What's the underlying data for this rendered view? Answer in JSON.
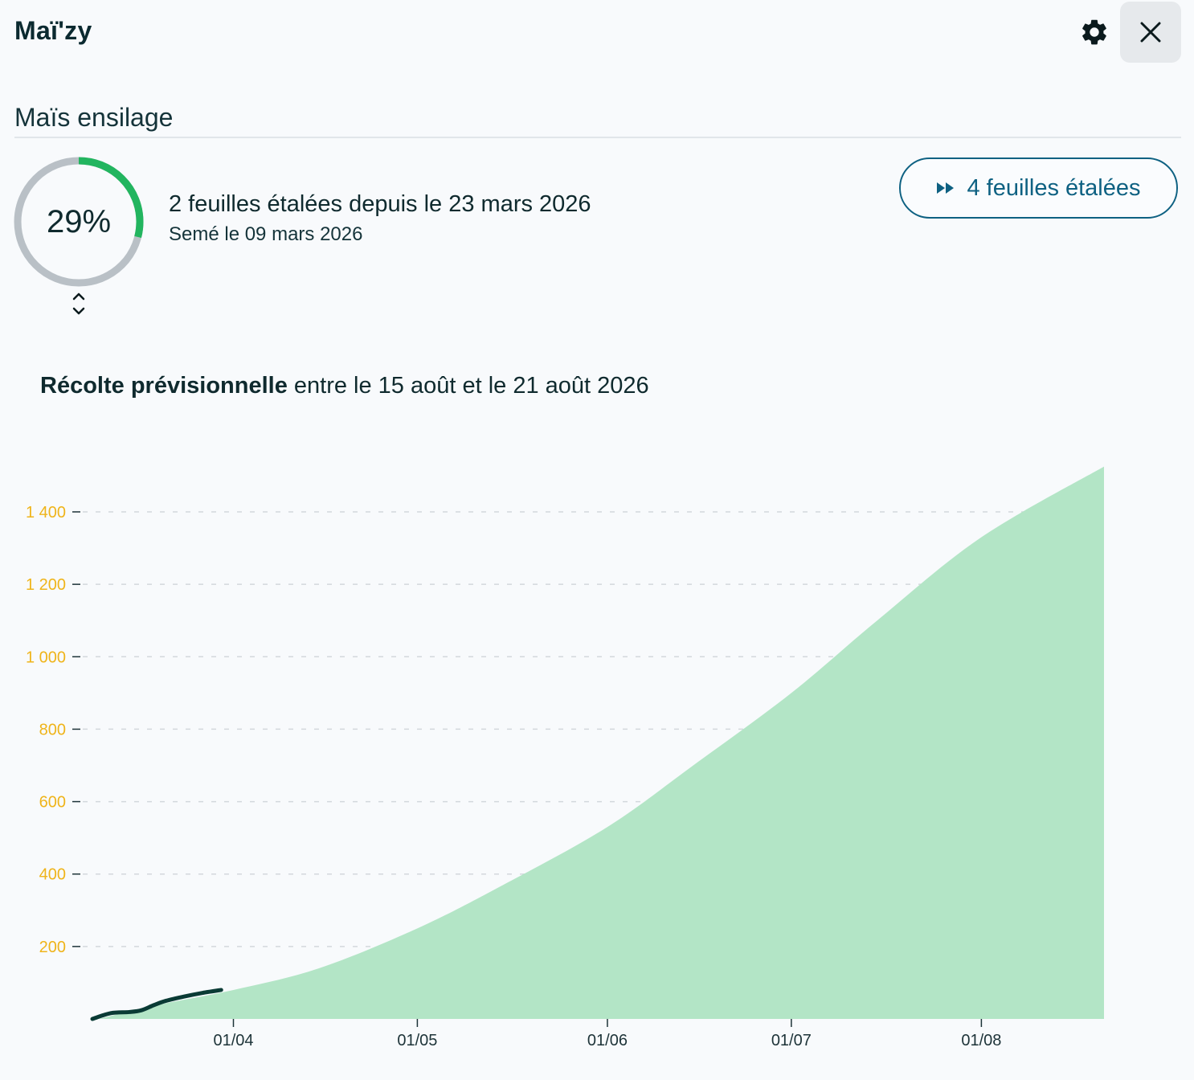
{
  "header": {
    "app_title": "Maï'zy",
    "settings_icon": "gear-icon",
    "close_icon": "close-icon"
  },
  "crop": {
    "name": "Maïs ensilage",
    "progress_label": "29%",
    "progress_value": 0.29,
    "leaves_text": "2 feuilles étalées depuis le 23 mars 2026",
    "sown_text": "Semé le 09 mars 2026"
  },
  "forecast_button": {
    "label": "4 feuilles étalées",
    "icon": "fast-forward-icon"
  },
  "harvest": {
    "bold": "Récolte prévisionnelle",
    "rest": " entre le 15 août et le 21 août 2026"
  },
  "colors": {
    "accent_green": "#22b55f",
    "ring_grey": "#b9c0c6",
    "button_blue": "#0e6182",
    "area_fill": "#b3e5c6",
    "observed_line": "#0a3b35",
    "tick_y": "#efb41a"
  },
  "chart_data": {
    "type": "area",
    "x_domain": [
      "2026-03-09",
      "2026-08-21"
    ],
    "y_range": [
      0,
      1400
    ],
    "y_ticks": [
      "200",
      "400",
      "600",
      "800",
      "1 000",
      "1 200",
      "1 400"
    ],
    "y_tick_values": [
      200,
      400,
      600,
      800,
      1000,
      1200,
      1400
    ],
    "x_ticks": [
      "01/04",
      "01/05",
      "01/06",
      "01/07",
      "01/08"
    ],
    "x_tick_dates": [
      "2026-04-01",
      "2026-05-01",
      "2026-06-01",
      "2026-07-01",
      "2026-08-01"
    ],
    "grid": "horizontal dashed",
    "series": [
      {
        "kind": "area",
        "points": [
          [
            "2026-03-10",
            0
          ],
          [
            "2026-03-20",
            40
          ],
          [
            "2026-04-01",
            80
          ],
          [
            "2026-04-15",
            140
          ],
          [
            "2026-05-01",
            250
          ],
          [
            "2026-05-15",
            370
          ],
          [
            "2026-06-01",
            530
          ],
          [
            "2026-06-15",
            700
          ],
          [
            "2026-07-01",
            900
          ],
          [
            "2026-07-15",
            1100
          ],
          [
            "2026-08-01",
            1330
          ],
          [
            "2026-08-21",
            1525
          ],
          [
            "2026-08-21",
            0
          ]
        ]
      },
      {
        "kind": "line",
        "points": [
          [
            "2026-03-09",
            0
          ],
          [
            "2026-03-12",
            16
          ],
          [
            "2026-03-15",
            19
          ],
          [
            "2026-03-17",
            24
          ],
          [
            "2026-03-19",
            38
          ],
          [
            "2026-03-21",
            50
          ],
          [
            "2026-03-24",
            62
          ],
          [
            "2026-03-27",
            72
          ],
          [
            "2026-03-30",
            80
          ]
        ]
      }
    ]
  }
}
